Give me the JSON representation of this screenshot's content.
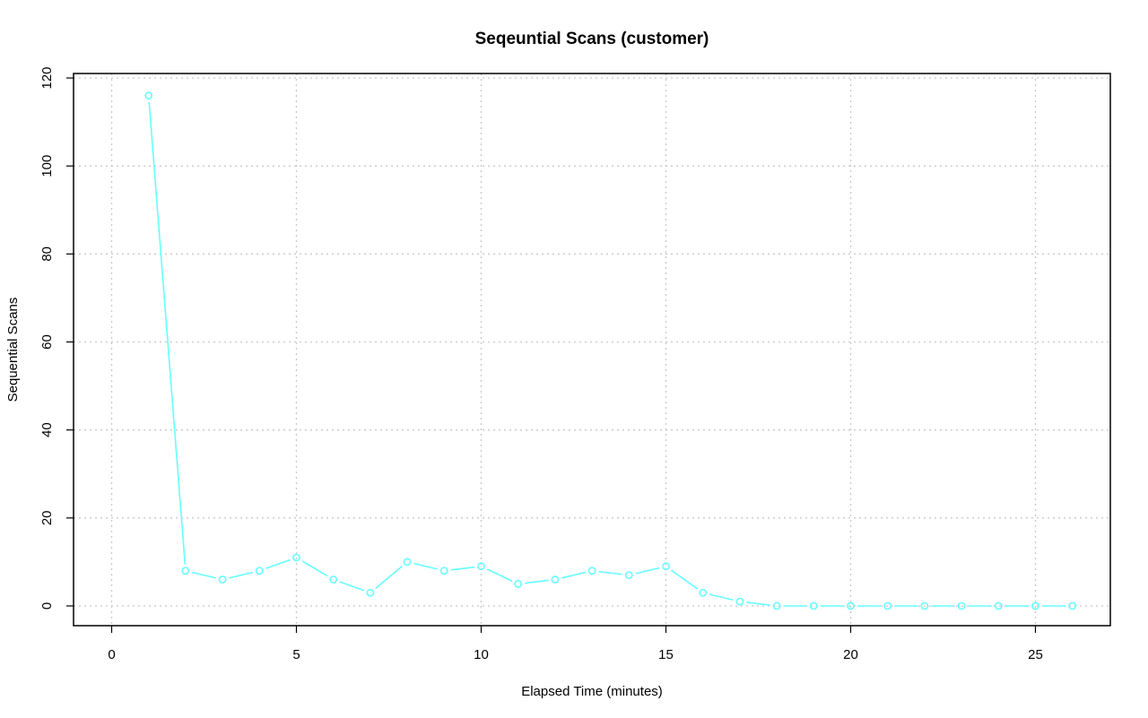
{
  "chart_data": {
    "type": "line",
    "title": "Seqeuntial Scans (customer)",
    "xlabel": "Elapsed Time (minutes)",
    "ylabel": "Sequential Scans",
    "xlim": [
      0,
      26
    ],
    "ylim": [
      0,
      120
    ],
    "x_ticks": [
      0,
      5,
      10,
      15,
      20,
      25
    ],
    "y_ticks": [
      0,
      20,
      40,
      60,
      80,
      100,
      120
    ],
    "grid": true,
    "series": [
      {
        "color": "#66ffff",
        "marker": "open-circle",
        "x": [
          1,
          2,
          3,
          4,
          5,
          6,
          7,
          8,
          9,
          10,
          11,
          12,
          13,
          14,
          15,
          16,
          17,
          18,
          19,
          20,
          21,
          22,
          23,
          24,
          25,
          26
        ],
        "values": [
          116,
          8,
          6,
          8,
          11,
          6,
          3,
          10,
          8,
          9,
          5,
          6,
          8,
          7,
          9,
          3,
          1,
          0,
          0,
          0,
          0,
          0,
          0,
          0,
          0,
          0
        ]
      }
    ]
  }
}
